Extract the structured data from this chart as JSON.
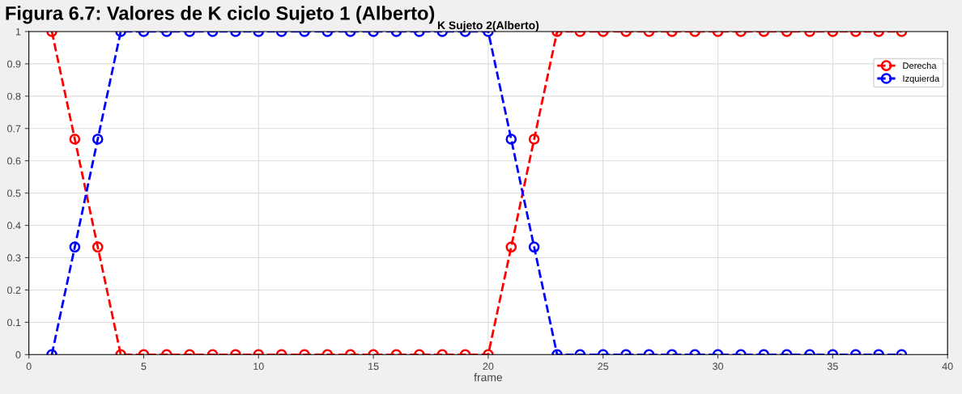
{
  "chart_data": {
    "type": "line",
    "title": "K Sujeto 2(Alberto)",
    "subtitle": "Figura 6.7: Valores de K ciclo Sujeto 1 (Alberto)",
    "xlabel": "frame",
    "x": [
      1,
      2,
      3,
      4,
      5,
      6,
      7,
      8,
      9,
      10,
      11,
      12,
      13,
      14,
      15,
      16,
      17,
      18,
      19,
      20,
      21,
      22,
      23,
      24,
      25,
      26,
      27,
      28,
      29,
      30,
      31,
      32,
      33,
      34,
      35,
      36,
      37,
      38
    ],
    "series": [
      {
        "name": "Derecha",
        "color": "#ff0000",
        "values": [
          1,
          0.667,
          0.333,
          0,
          0,
          0,
          0,
          0,
          0,
          0,
          0,
          0,
          0,
          0,
          0,
          0,
          0,
          0,
          0,
          0,
          0.333,
          0.667,
          1,
          1,
          1,
          1,
          1,
          1,
          1,
          1,
          1,
          1,
          1,
          1,
          1,
          1,
          1,
          1
        ]
      },
      {
        "name": "Izquierda",
        "color": "#0000ff",
        "values": [
          0,
          0.333,
          0.667,
          1,
          1,
          1,
          1,
          1,
          1,
          1,
          1,
          1,
          1,
          1,
          1,
          1,
          1,
          1,
          1,
          1,
          0.667,
          0.333,
          0,
          0,
          0,
          0,
          0,
          0,
          0,
          0,
          0,
          0,
          0,
          0,
          0,
          0,
          0,
          0
        ]
      }
    ],
    "xlim": [
      0,
      40
    ],
    "xticks": [
      0,
      5,
      10,
      15,
      20,
      25,
      30,
      35,
      40
    ],
    "ylim": [
      0,
      1
    ],
    "yticks": [
      0,
      0.1,
      0.2,
      0.3,
      0.4,
      0.5,
      0.6,
      0.7,
      0.8,
      0.9,
      1
    ],
    "grid": true,
    "legend": "top right",
    "marker": "circle",
    "line_style": "dashed"
  }
}
